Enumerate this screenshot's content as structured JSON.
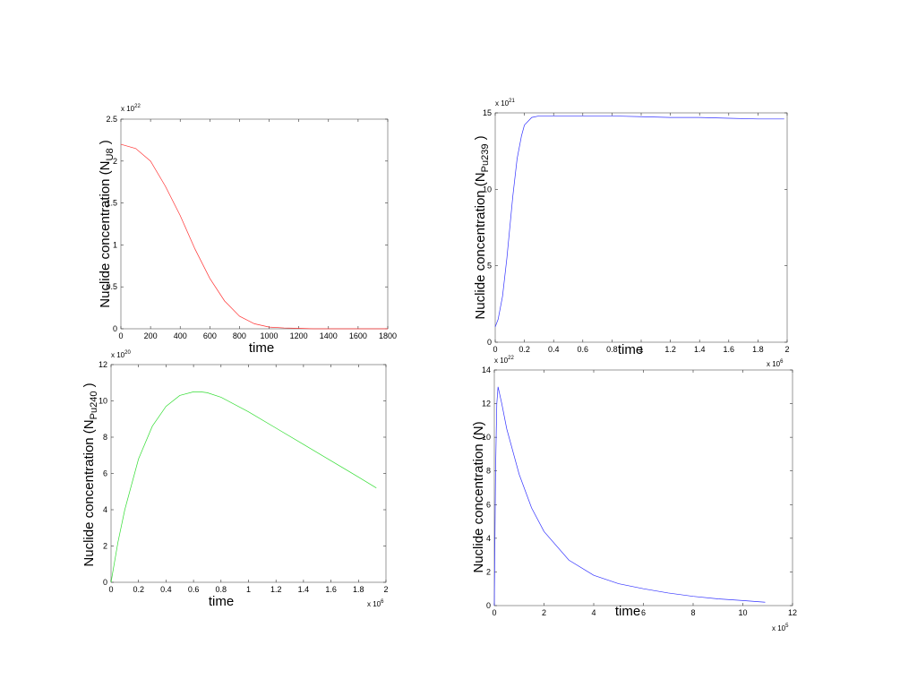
{
  "chart_data": [
    {
      "type": "line",
      "xlabel": "time",
      "ylabel": {
        "text": "Nuclide concentration (N",
        "subscript": "U8",
        "suffix": " )"
      },
      "y_multiplier": {
        "base": "x 10",
        "exponent": "22"
      },
      "x": [
        0,
        100,
        200,
        300,
        400,
        500,
        600,
        700,
        800,
        900,
        1000,
        1100,
        1200,
        1300,
        1400,
        1500,
        1600,
        1700,
        1800
      ],
      "series": [
        {
          "color": "#ff3333",
          "values": [
            2.2,
            2.15,
            2.0,
            1.7,
            1.35,
            0.95,
            0.6,
            0.33,
            0.15,
            0.06,
            0.02,
            0.01,
            0.005,
            0,
            0,
            0,
            0,
            0,
            0
          ]
        }
      ],
      "xlim": [
        0,
        1800
      ],
      "xticks": [
        0,
        200,
        400,
        600,
        800,
        1000,
        1200,
        1400,
        1600,
        1800
      ],
      "ylim": [
        0,
        2.5
      ],
      "yticks": [
        0,
        0.5,
        1,
        1.5,
        2,
        2.5
      ]
    },
    {
      "type": "line",
      "xlabel": "time",
      "ylabel": {
        "text": "Nuclide concentration (N",
        "subscript": "Pu239",
        "suffix": " )"
      },
      "y_multiplier": {
        "base": "x 10",
        "exponent": "21"
      },
      "x_multiplier": {
        "base": "x 10",
        "exponent": "6"
      },
      "x": [
        0,
        0.02,
        0.05,
        0.08,
        0.1,
        0.12,
        0.15,
        0.18,
        0.2,
        0.25,
        0.3,
        0.4,
        0.6,
        0.8,
        1,
        1.2,
        1.4,
        1.6,
        1.8,
        1.98
      ],
      "series": [
        {
          "color": "#3333ff",
          "values": [
            1,
            1.5,
            3,
            5.5,
            7.5,
            9.5,
            12,
            13.5,
            14.2,
            14.7,
            14.8,
            14.8,
            14.8,
            14.8,
            14.75,
            14.7,
            14.7,
            14.65,
            14.6,
            14.6
          ]
        }
      ],
      "xlim": [
        0,
        2
      ],
      "xticks": [
        0,
        0.2,
        0.4,
        0.6,
        0.8,
        1,
        1.2,
        1.4,
        1.6,
        1.8,
        2
      ],
      "ylim": [
        0,
        15
      ],
      "yticks": [
        0,
        5,
        10,
        15
      ]
    },
    {
      "type": "line",
      "xlabel": "time",
      "ylabel": {
        "text": "Nuclide concentration (N",
        "subscript": "Pu240",
        "suffix": " )"
      },
      "y_multiplier": {
        "base": "x 10",
        "exponent": "20"
      },
      "x_multiplier": {
        "base": "x 10",
        "exponent": "6"
      },
      "x": [
        0,
        0.05,
        0.1,
        0.2,
        0.3,
        0.4,
        0.5,
        0.6,
        0.65,
        0.7,
        0.8,
        1,
        1.2,
        1.4,
        1.6,
        1.8,
        1.93
      ],
      "series": [
        {
          "color": "#33dd33",
          "values": [
            0,
            2.2,
            4,
            6.8,
            8.6,
            9.7,
            10.3,
            10.5,
            10.5,
            10.45,
            10.2,
            9.4,
            8.5,
            7.6,
            6.7,
            5.8,
            5.2
          ]
        }
      ],
      "xlim": [
        0,
        2
      ],
      "xticks": [
        0,
        0.2,
        0.4,
        0.6,
        0.8,
        1,
        1.2,
        1.4,
        1.6,
        1.8,
        2
      ],
      "ylim": [
        0,
        12
      ],
      "yticks": [
        0,
        2,
        4,
        6,
        8,
        10,
        12
      ]
    },
    {
      "type": "line",
      "xlabel": "time",
      "ylabel": {
        "text": "Nuclide concentration (N)"
      },
      "y_multiplier": {
        "base": "x 10",
        "exponent": "22"
      },
      "x_multiplier": {
        "base": "x 10",
        "exponent": "5"
      },
      "x": [
        0,
        0.05,
        0.1,
        0.15,
        0.3,
        0.5,
        1,
        1.5,
        2,
        3,
        4,
        5,
        6,
        7,
        8,
        9,
        10,
        10.9
      ],
      "series": [
        {
          "color": "#3333ff",
          "values": [
            0,
            8,
            12,
            13,
            12,
            10.5,
            7.8,
            5.8,
            4.4,
            2.7,
            1.8,
            1.3,
            1,
            0.75,
            0.55,
            0.4,
            0.3,
            0.2
          ]
        }
      ],
      "xlim": [
        0,
        12
      ],
      "xticks": [
        0,
        2,
        4,
        6,
        8,
        10,
        12
      ],
      "ylim": [
        0,
        14
      ],
      "yticks": [
        0,
        2,
        4,
        6,
        8,
        10,
        12,
        14
      ]
    }
  ]
}
